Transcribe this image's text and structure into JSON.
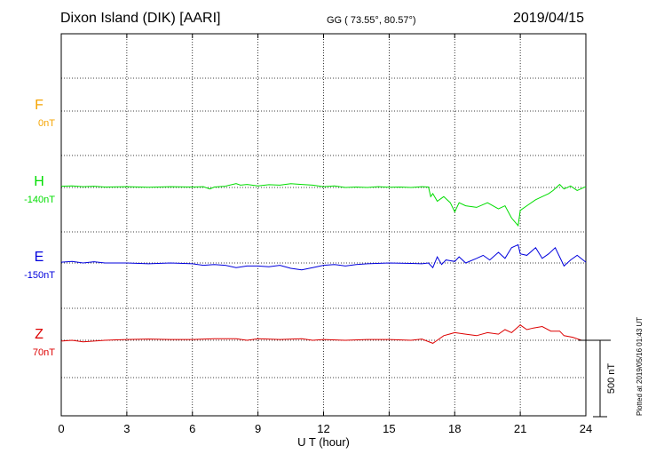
{
  "header": {
    "title": "Dixon Island (DIK)  [AARI]",
    "coords": "GG ( 73.55°,  80.57°)",
    "date": "2019/04/15"
  },
  "side_note": "Plotted at 2019/05/16 01:43 UT",
  "chart_data": {
    "type": "line",
    "xlabel": "U T (hour)",
    "xlim": [
      0,
      24
    ],
    "xticks": [
      0,
      3,
      6,
      9,
      12,
      15,
      18,
      21,
      24
    ],
    "grid": true,
    "scale_bar": {
      "label": "500 nT",
      "value_nT": 500
    },
    "series": [
      {
        "name": "F",
        "offset_label": "0nT",
        "color": "#f5a400",
        "x": [],
        "y": []
      },
      {
        "name": "H",
        "offset_label": "-140nT",
        "color": "#00dd00",
        "x": [
          0,
          0.5,
          1,
          1.5,
          2,
          3,
          4,
          5,
          6,
          6.5,
          6.8,
          7,
          7.5,
          8,
          8.2,
          8.5,
          9,
          9.5,
          10,
          10.5,
          11,
          11.5,
          12,
          12.5,
          13,
          13.5,
          14,
          14.5,
          15,
          15.5,
          16,
          16.5,
          16.8,
          16.9,
          17,
          17.2,
          17.5,
          17.8,
          18,
          18.2,
          18.5,
          19,
          19.5,
          20,
          20.3,
          20.6,
          20.9,
          21,
          21.3,
          21.7,
          22,
          22.3,
          22.5,
          22.8,
          23,
          23.3,
          23.6,
          24
        ],
        "y": [
          8,
          10,
          5,
          8,
          3,
          5,
          2,
          5,
          3,
          5,
          -10,
          3,
          8,
          25,
          15,
          20,
          10,
          18,
          15,
          25,
          20,
          15,
          5,
          10,
          0,
          3,
          0,
          5,
          2,
          3,
          0,
          5,
          3,
          -60,
          -40,
          -90,
          -60,
          -100,
          -160,
          -100,
          -120,
          -130,
          -100,
          -140,
          -120,
          -200,
          -250,
          -150,
          -120,
          -80,
          -60,
          -40,
          -20,
          20,
          -10,
          10,
          -20,
          5
        ]
      },
      {
        "name": "E",
        "offset_label": "-150nT",
        "color": "#0000dd",
        "x": [
          0,
          0.5,
          1,
          1.5,
          2,
          3,
          4,
          5,
          6,
          6.5,
          7,
          7.5,
          8,
          8.5,
          9,
          9.5,
          10,
          10.5,
          11,
          11.5,
          12,
          12.5,
          13,
          13.5,
          14,
          15,
          16,
          16.5,
          16.8,
          17,
          17.2,
          17.4,
          17.6,
          18,
          18.2,
          18.5,
          19,
          19.3,
          19.6,
          20,
          20.3,
          20.6,
          20.9,
          21,
          21.3,
          21.7,
          22,
          22.3,
          22.6,
          23,
          23.3,
          23.6,
          24
        ],
        "y": [
          5,
          10,
          0,
          8,
          0,
          0,
          -5,
          0,
          -5,
          -15,
          -10,
          -15,
          -30,
          -20,
          -20,
          -25,
          -15,
          -35,
          -45,
          -30,
          -15,
          -10,
          -20,
          -10,
          -5,
          0,
          -3,
          -5,
          0,
          -30,
          40,
          -10,
          20,
          10,
          40,
          0,
          30,
          50,
          20,
          70,
          30,
          100,
          120,
          60,
          50,
          100,
          30,
          60,
          100,
          -20,
          20,
          50,
          5
        ]
      },
      {
        "name": "Z",
        "offset_label": "70nT",
        "color": "#dd0000",
        "x": [
          0,
          0.5,
          1,
          1.5,
          2,
          3,
          4,
          5,
          6,
          7,
          8,
          8.5,
          9,
          10,
          11,
          11.5,
          12,
          13,
          14,
          15,
          16,
          16.5,
          17,
          17.2,
          17.5,
          18,
          18.5,
          19,
          19.5,
          20,
          20.3,
          20.6,
          21,
          21.3,
          21.6,
          22,
          22.4,
          22.8,
          23,
          23.4,
          23.8,
          24
        ],
        "y": [
          -5,
          0,
          -10,
          -5,
          0,
          5,
          8,
          5,
          5,
          10,
          10,
          0,
          10,
          5,
          10,
          0,
          5,
          0,
          5,
          5,
          0,
          8,
          -20,
          0,
          30,
          50,
          40,
          30,
          50,
          40,
          70,
          50,
          100,
          70,
          80,
          90,
          60,
          60,
          30,
          20,
          0,
          0
        ]
      }
    ]
  }
}
